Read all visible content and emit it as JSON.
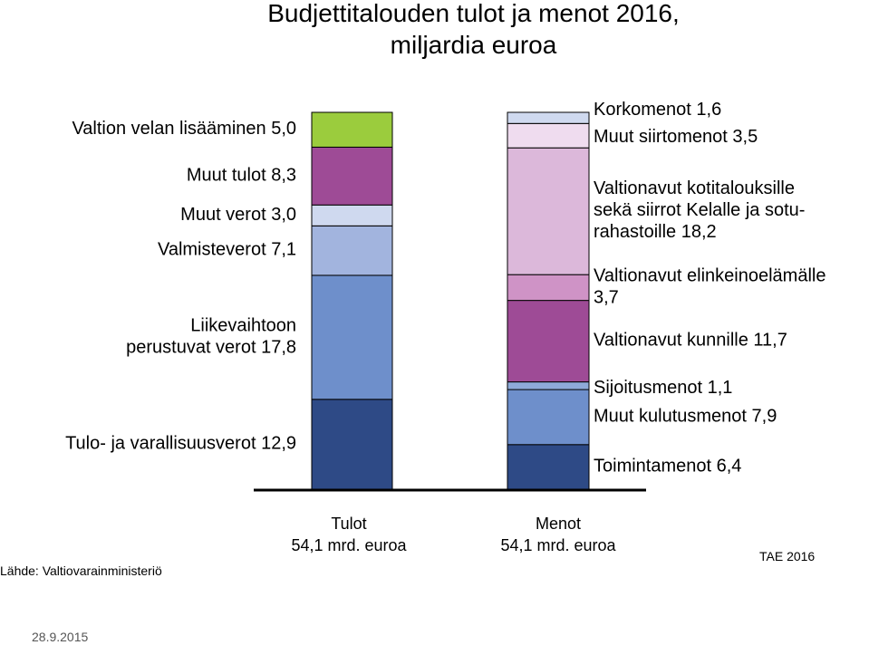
{
  "title_line1": "Budjettitalouden tulot ja menot 2016,",
  "title_line2": "miljardia euroa",
  "source": "Lähde: Valtiovarainministeriö",
  "stamp": "TAE 2016",
  "date": "28.9.2015",
  "chart_data": {
    "type": "bar",
    "stacked": true,
    "unit": "mrd. euroa",
    "bars": [
      {
        "name": "Tulot",
        "caption": [
          "Tulot",
          "54,1 mrd. euroa"
        ],
        "total": 54.1,
        "segments": [
          {
            "value": 12.9,
            "label": [
              "Tulo- ja varallisuusverot 12,9"
            ],
            "color": "#2e4a86"
          },
          {
            "value": 17.8,
            "label": [
              "Liikevaihtoon",
              "perustuvat verot 17,8"
            ],
            "color": "#6e8fcb"
          },
          {
            "value": 7.1,
            "label": [
              "Valmisteverot 7,1"
            ],
            "color": "#a2b4de"
          },
          {
            "value": 3.0,
            "label": [
              "Muut verot 3,0"
            ],
            "color": "#cfd9ef"
          },
          {
            "value": 8.3,
            "label": [
              "Muut tulot 8,3"
            ],
            "color": "#9e4b96"
          },
          {
            "value": 5.0,
            "label": [
              "Valtion velan lisääminen 5,0"
            ],
            "color": "#9bcc3d"
          }
        ]
      },
      {
        "name": "Menot",
        "caption": [
          "Menot",
          "54,1 mrd. euroa"
        ],
        "total": 54.1,
        "segments": [
          {
            "value": 6.4,
            "label": [
              "Toimintamenot 6,4"
            ],
            "color": "#2e4a86"
          },
          {
            "value": 7.9,
            "label": [
              "Muut kulutusmenot 7,9"
            ],
            "color": "#6e8fcb"
          },
          {
            "value": 1.1,
            "label": [
              "Sijoitusmenot 1,1"
            ],
            "color": "#8eaad8"
          },
          {
            "value": 11.7,
            "label": [
              "Valtionavut kunnille 11,7"
            ],
            "color": "#9e4b96"
          },
          {
            "value": 3.7,
            "label": [
              "Valtionavut  elinkeinoelämälle",
              "3,7"
            ],
            "color": "#cf93c6"
          },
          {
            "value": 18.2,
            "label": [
              "Valtionavut kotitalouksille",
              "sekä siirrot Kelalle ja sotu-",
              "rahastoille 18,2"
            ],
            "color": "#dcb8da"
          },
          {
            "value": 3.5,
            "label": [
              "Muut siirtomenot 3,5"
            ],
            "color": "#efdcef"
          },
          {
            "value": 1.6,
            "label": [
              "Korkomenot 1,6"
            ],
            "color": "#cfd9ef"
          }
        ]
      }
    ]
  }
}
